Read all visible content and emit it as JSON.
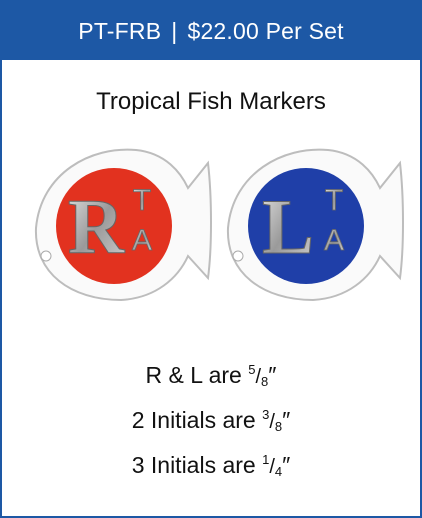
{
  "header": {
    "code": "PT-FRB",
    "separator": "|",
    "price": "$22.00 Per Set"
  },
  "title": "Tropical Fish Markers",
  "markers": [
    {
      "letter": "R",
      "initials": [
        "T",
        "A"
      ]
    },
    {
      "letter": "L",
      "initials": [
        "T",
        "A"
      ]
    }
  ],
  "fraction_bar": "/",
  "sizes": [
    {
      "lead": "R & L are",
      "numerator": "5",
      "denominator": "8",
      "unit": "″"
    },
    {
      "lead": "2 Initials are",
      "numerator": "3",
      "denominator": "8",
      "unit": "″"
    },
    {
      "lead": "3 Initials are",
      "numerator": "1",
      "denominator": "4",
      "unit": "″"
    }
  ]
}
